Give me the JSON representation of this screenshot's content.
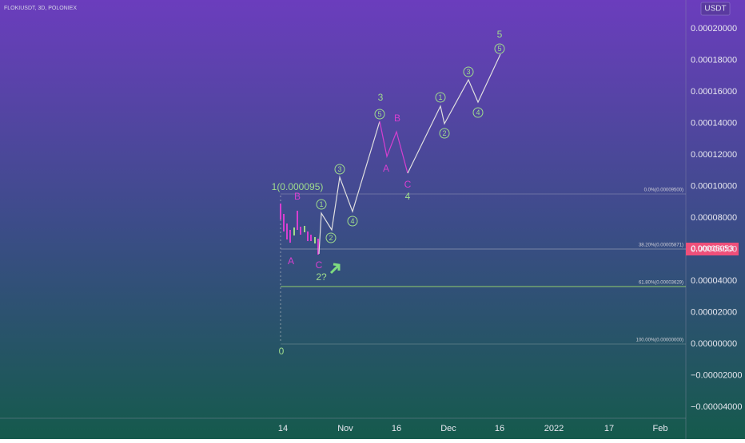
{
  "header": {
    "symbol": "FLOKIUSDT, 3D, POLONIEX",
    "currency": "USDT"
  },
  "price_axis": {
    "labels": [
      "0.00020000",
      "0.00018000",
      "0.00016000",
      "0.00014000",
      "0.00012000",
      "0.00010000",
      "0.00008000",
      "0.00006000",
      "0.00004000",
      "0.00002000",
      "0.00000000",
      "−0.00002000",
      "−0.00004000"
    ],
    "current_price": "0.00005053"
  },
  "time_axis": {
    "labels": [
      "14",
      "Nov",
      "16",
      "Dec",
      "16",
      "2022",
      "17",
      "Feb"
    ]
  },
  "fib_levels": [
    "0.0%(0.00009500)",
    "38.20%(0.00005871)",
    "61.80%(0.00003629)",
    "100.00%(0.00000000)"
  ],
  "wave_labels": [
    "1(0.000095)",
    "B",
    "A",
    "C",
    "2?",
    "0",
    "3",
    "B",
    "A",
    "C",
    "4",
    "5"
  ],
  "circle_labels": [
    "1",
    "2",
    "3",
    "4",
    "5",
    "1",
    "2",
    "3",
    "4",
    "5"
  ]
}
